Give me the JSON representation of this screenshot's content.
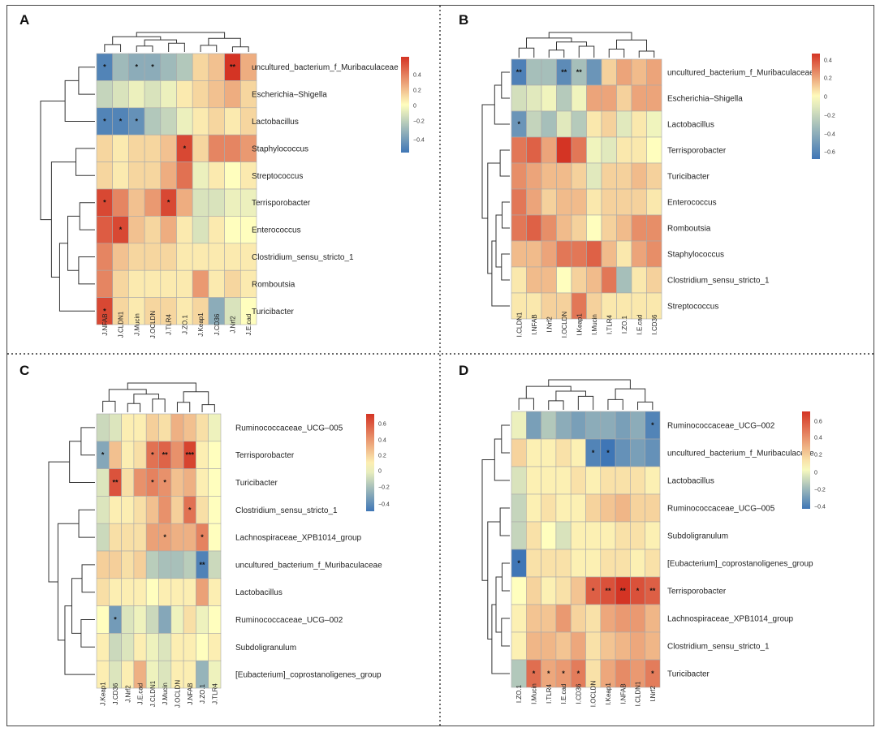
{
  "figure": {
    "border_color": "#444444",
    "divider_color": "#333333"
  },
  "colors": {
    "low": "#3f76b6",
    "mid": "#fffebe",
    "high": "#d43424",
    "grid": "#aaaaaa",
    "tree": "#333333"
  },
  "chart_data": [
    {
      "type": "heatmap",
      "panel": "A",
      "columns": [
        "J.NFAB",
        "J.CLDN1",
        "J.Mucin",
        "J.OCLDN",
        "J.TLR4",
        "J.ZO.1",
        "J.Keap1",
        "J.CD36",
        "J.Nrf2",
        "J.E.cad"
      ],
      "rows": [
        "uncultured_bacterium_f_Muribaculaceae",
        "Escherichia–Shigella",
        "Lactobacillus",
        "Staphylococcus",
        "Streptococcus",
        "Terrisporobacter",
        "Enterococcus",
        "Clostridium_sensu_stricto_1",
        "Romboutsia",
        "Turicibacter"
      ],
      "values": [
        [
          -0.45,
          -0.25,
          -0.3,
          -0.3,
          -0.25,
          -0.2,
          0.1,
          0.15,
          0.5,
          0.2
        ],
        [
          -0.15,
          -0.1,
          -0.05,
          -0.1,
          -0.05,
          0.05,
          0.1,
          0.15,
          0.2,
          0.1
        ],
        [
          -0.45,
          -0.45,
          -0.4,
          -0.2,
          -0.15,
          -0.05,
          0.05,
          0.1,
          0.05,
          0.1
        ],
        [
          0.1,
          0.05,
          0.1,
          0.1,
          0.15,
          0.45,
          0.1,
          0.3,
          0.3,
          0.25
        ],
        [
          0.1,
          0.05,
          0.1,
          0.1,
          0.2,
          0.35,
          -0.05,
          0.05,
          0.0,
          0.05
        ],
        [
          0.45,
          0.3,
          0.15,
          0.25,
          0.45,
          0.2,
          -0.1,
          -0.1,
          -0.05,
          -0.05
        ],
        [
          0.4,
          0.45,
          0.15,
          0.1,
          0.2,
          0.05,
          -0.1,
          0.05,
          0.0,
          0.0
        ],
        [
          0.3,
          0.15,
          0.1,
          0.1,
          0.1,
          0.05,
          0.05,
          0.05,
          0.05,
          0.05
        ],
        [
          0.3,
          0.1,
          0.05,
          0.05,
          0.05,
          0.05,
          0.25,
          0.05,
          0.1,
          0.05
        ],
        [
          0.45,
          0.1,
          0.05,
          0.1,
          0.1,
          0.05,
          0.1,
          -0.3,
          -0.1,
          0.0
        ]
      ],
      "stars": [
        [
          "*",
          "",
          "*",
          "*",
          "",
          "",
          "",
          "",
          "**",
          ""
        ],
        [
          "",
          "",
          "",
          "",
          "",
          "",
          "",
          "",
          "",
          ""
        ],
        [
          "*",
          "*",
          "*",
          "",
          "",
          "",
          "",
          "",
          "",
          ""
        ],
        [
          "",
          "",
          "",
          "",
          "",
          "*",
          "",
          "",
          "",
          ""
        ],
        [
          "",
          "",
          "",
          "",
          "",
          "",
          "",
          "",
          "",
          ""
        ],
        [
          "*",
          "",
          "",
          "",
          "*",
          "",
          "",
          "",
          "",
          ""
        ],
        [
          "",
          "*",
          "",
          "",
          "",
          "",
          "",
          "",
          "",
          ""
        ],
        [
          "",
          "",
          "",
          "",
          "",
          "",
          "",
          "",
          "",
          ""
        ],
        [
          "",
          "",
          "",
          "",
          "",
          "",
          "",
          "",
          "",
          ""
        ],
        [
          "*",
          "",
          "",
          "",
          "",
          "",
          "",
          "",
          "",
          ""
        ]
      ],
      "colorbar": {
        "ticks": [
          0.4,
          0.2,
          0,
          -0.2,
          -0.4
        ],
        "labels": [
          "0.4",
          "0.2",
          "0",
          "−0.2",
          "−0.4"
        ],
        "range": [
          -0.5,
          0.5
        ]
      }
    },
    {
      "type": "heatmap",
      "panel": "B",
      "columns": [
        "I.CLDN1",
        "I.NFAB",
        "I.Nrf2",
        "I.OCLDN",
        "I.Keap1",
        "I.Mucin",
        "I.TLR4",
        "I.ZO.1",
        "I.E.cad",
        "I.CD36"
      ],
      "rows": [
        "uncultured_bacterium_f_Muribaculaceae",
        "Escherichia–Shigella",
        "Lactobacillus",
        "Terrisporobacter",
        "Turicibacter",
        "Enterococcus",
        "Romboutsia",
        "Staphylococcus",
        "Clostridium_sensu_stricto_1",
        "Streptococcus"
      ],
      "values": [
        [
          -0.6,
          -0.3,
          -0.3,
          -0.55,
          -0.3,
          -0.5,
          0.1,
          0.2,
          0.15,
          0.2
        ],
        [
          -0.15,
          -0.1,
          -0.05,
          -0.25,
          -0.05,
          0.2,
          0.2,
          0.1,
          0.2,
          0.2
        ],
        [
          -0.5,
          -0.2,
          -0.3,
          -0.1,
          -0.25,
          0.05,
          0.1,
          -0.1,
          0.05,
          -0.05
        ],
        [
          0.3,
          0.35,
          0.2,
          0.45,
          0.3,
          -0.05,
          -0.1,
          0.05,
          0.05,
          0.0
        ],
        [
          0.25,
          0.2,
          0.15,
          0.15,
          0.1,
          -0.1,
          0.1,
          0.1,
          0.15,
          0.1
        ],
        [
          0.3,
          0.2,
          0.1,
          0.15,
          0.15,
          0.05,
          0.1,
          0.1,
          0.1,
          0.05
        ],
        [
          0.3,
          0.35,
          0.25,
          0.15,
          0.1,
          0.0,
          0.1,
          0.15,
          0.25,
          0.25
        ],
        [
          0.15,
          0.15,
          0.2,
          0.3,
          0.3,
          0.35,
          0.15,
          0.05,
          0.2,
          0.25
        ],
        [
          0.05,
          0.15,
          0.15,
          0.0,
          0.1,
          0.15,
          0.3,
          -0.3,
          0.05,
          0.1
        ],
        [
          0.05,
          0.05,
          0.1,
          0.1,
          0.3,
          0.1,
          0.05,
          0.05,
          0.05,
          0.05
        ]
      ],
      "stars": [
        [
          "**",
          "",
          "",
          "**",
          "**",
          "",
          "",
          "",
          "",
          ""
        ],
        [
          "",
          "",
          "",
          "",
          "",
          "",
          "",
          "",
          "",
          ""
        ],
        [
          "*",
          "",
          "",
          "",
          "",
          "",
          "",
          "",
          "",
          ""
        ],
        [
          "",
          "",
          "",
          "",
          "",
          "",
          "",
          "",
          "",
          ""
        ],
        [
          "",
          "",
          "",
          "",
          "",
          "",
          "",
          "",
          "",
          ""
        ],
        [
          "",
          "",
          "",
          "",
          "",
          "",
          "",
          "",
          "",
          ""
        ],
        [
          "",
          "",
          "",
          "",
          "",
          "",
          "",
          "",
          "",
          ""
        ],
        [
          "",
          "",
          "",
          "",
          "",
          "",
          "",
          "",
          "",
          ""
        ],
        [
          "",
          "",
          "",
          "",
          "",
          "",
          "",
          "",
          "",
          ""
        ],
        [
          "",
          "",
          "",
          "",
          "",
          "",
          "",
          "",
          "",
          ""
        ]
      ],
      "colorbar": {
        "ticks": [
          0.4,
          0.2,
          0,
          -0.2,
          -0.4,
          -0.6
        ],
        "labels": [
          "0.4",
          "0.2",
          "0",
          "−0.2",
          "−0.4",
          "−0.6"
        ],
        "range": [
          -0.65,
          0.45
        ]
      }
    },
    {
      "type": "heatmap",
      "panel": "C",
      "columns": [
        "J.Keap1",
        "J.CD36",
        "J.Nrf2",
        "J.E.cad",
        "J.CLDN1",
        "J.Mucin",
        "J.OCLDN",
        "J.NFAB",
        "J.ZO.1",
        "J.TLR4"
      ],
      "rows": [
        "Ruminococcaceae_UCG–005",
        "Terrisporobacter",
        "Turicibacter",
        "Clostridium_sensu_stricto_1",
        "Lachnospiraceae_XPB1014_group",
        "uncultured_bacterium_f_Muribaculaceae",
        "Lactobacillus",
        "Ruminococcaceae_UCG–002",
        "Subdoligranulum",
        "[Eubacterium]_coprostanoligenes_group"
      ],
      "values": [
        [
          -0.15,
          -0.1,
          0.05,
          0.05,
          0.15,
          0.1,
          0.25,
          0.2,
          0.1,
          -0.05
        ],
        [
          -0.35,
          0.2,
          0.05,
          0.1,
          0.45,
          0.5,
          0.35,
          0.6,
          0.05,
          0.0
        ],
        [
          -0.1,
          0.55,
          0.1,
          0.35,
          0.4,
          0.35,
          0.2,
          0.25,
          0.05,
          0.0
        ],
        [
          -0.1,
          0.05,
          0.05,
          0.1,
          0.2,
          0.35,
          0.15,
          0.45,
          0.1,
          0.0
        ],
        [
          -0.15,
          0.1,
          0.1,
          0.1,
          0.3,
          0.3,
          0.25,
          0.25,
          0.4,
          0.0
        ],
        [
          0.15,
          0.15,
          0.1,
          0.15,
          -0.2,
          -0.25,
          -0.25,
          -0.2,
          -0.5,
          -0.15
        ],
        [
          0.1,
          0.05,
          0.05,
          0.05,
          0.0,
          0.05,
          0.05,
          0.05,
          0.3,
          0.05
        ],
        [
          0.0,
          -0.4,
          -0.1,
          -0.05,
          -0.15,
          -0.35,
          -0.05,
          0.1,
          -0.05,
          0.0
        ],
        [
          0.05,
          -0.15,
          -0.1,
          0.05,
          -0.05,
          -0.1,
          0.05,
          0.05,
          0.0,
          0.05
        ],
        [
          0.05,
          -0.1,
          0.05,
          0.25,
          -0.05,
          -0.1,
          0.05,
          0.05,
          -0.3,
          -0.05
        ]
      ],
      "stars": [
        [
          "",
          "",
          "",
          "",
          "",
          "",
          "",
          "",
          "",
          ""
        ],
        [
          "*",
          "",
          "",
          "",
          "*",
          "**",
          "",
          "***",
          "",
          ""
        ],
        [
          "",
          "**",
          "",
          "",
          "*",
          "*",
          "",
          "",
          "",
          ""
        ],
        [
          "",
          "",
          "",
          "",
          "",
          "",
          "",
          "*",
          "",
          ""
        ],
        [
          "",
          "",
          "",
          "",
          "",
          "*",
          "",
          "",
          "*",
          ""
        ],
        [
          "",
          "",
          "",
          "",
          "",
          "",
          "",
          "",
          "**",
          ""
        ],
        [
          "",
          "",
          "",
          "",
          "",
          "",
          "",
          "",
          "",
          ""
        ],
        [
          "",
          "*",
          "",
          "",
          "",
          "",
          "",
          "",
          "",
          ""
        ],
        [
          "",
          "",
          "",
          "",
          "",
          "",
          "",
          "",
          "",
          ""
        ],
        [
          "",
          "",
          "",
          "",
          "",
          "",
          "",
          "",
          "",
          ""
        ]
      ],
      "colorbar": {
        "ticks": [
          0.6,
          0.4,
          0.2,
          0,
          -0.2,
          -0.4
        ],
        "labels": [
          "0.6",
          "0.4",
          "0.2",
          "0",
          "−0.2",
          "−0.4"
        ],
        "range": [
          -0.55,
          0.65
        ]
      }
    },
    {
      "type": "heatmap",
      "panel": "D",
      "columns": [
        "I.ZO.1",
        "I.Mucin",
        "I.TLR4",
        "I.E.cad",
        "I.CD36",
        "I.OCLDN",
        "I.Keap1",
        "I.NFAB",
        "I.CLDN1",
        "I.Nrf2"
      ],
      "rows": [
        "Ruminococcaceae_UCG–002",
        "uncultured_bacterium_f_Muribaculaceae",
        "Lactobacillus",
        "Ruminococcaceae_UCG–005",
        "Subdoligranulum",
        "[Eubacterium]_coprostanoligenes_group",
        "Terrisporobacter",
        "Lachnospiraceae_XPB1014_group",
        "Clostridium_sensu_stricto_1",
        "Turicibacter"
      ],
      "values": [
        [
          -0.05,
          -0.35,
          -0.2,
          -0.3,
          -0.35,
          -0.3,
          -0.3,
          -0.35,
          -0.3,
          -0.45
        ],
        [
          0.15,
          0.05,
          0.05,
          0.1,
          0.05,
          -0.45,
          -0.5,
          -0.4,
          -0.35,
          -0.4
        ],
        [
          -0.1,
          0.05,
          0.05,
          0.05,
          0.1,
          0.05,
          0.1,
          0.1,
          0.1,
          0.05
        ],
        [
          -0.15,
          0.05,
          0.1,
          0.05,
          0.05,
          0.15,
          0.2,
          0.25,
          0.15,
          0.15
        ],
        [
          -0.15,
          0.1,
          0.0,
          -0.1,
          0.05,
          0.05,
          0.05,
          0.1,
          0.1,
          0.05
        ],
        [
          -0.5,
          0.1,
          0.1,
          0.1,
          0.05,
          0.05,
          0.1,
          0.1,
          0.05,
          0.1
        ],
        [
          0.0,
          0.15,
          0.05,
          0.1,
          0.2,
          0.55,
          0.6,
          0.7,
          0.6,
          0.55
        ],
        [
          0.05,
          0.2,
          0.2,
          0.35,
          0.15,
          0.1,
          0.3,
          0.35,
          0.35,
          0.25
        ],
        [
          0.05,
          0.25,
          0.25,
          0.2,
          0.3,
          0.1,
          0.2,
          0.25,
          0.3,
          0.25
        ],
        [
          -0.2,
          0.5,
          0.3,
          0.35,
          0.45,
          0.1,
          0.3,
          0.4,
          0.35,
          0.45
        ]
      ],
      "stars": [
        [
          "",
          "",
          "",
          "",
          "",
          "",
          "",
          "",
          "",
          "*"
        ],
        [
          "",
          "",
          "",
          "",
          "",
          "*",
          "*",
          "",
          "",
          ""
        ],
        [
          "",
          "",
          "",
          "",
          "",
          "",
          "",
          "",
          "",
          ""
        ],
        [
          "",
          "",
          "",
          "",
          "",
          "",
          "",
          "",
          "",
          ""
        ],
        [
          "",
          "",
          "",
          "",
          "",
          "",
          "",
          "",
          "",
          ""
        ],
        [
          "*",
          "",
          "",
          "",
          "",
          "",
          "",
          "",
          "",
          ""
        ],
        [
          "",
          "",
          "",
          "",
          "",
          "*",
          "**",
          "**",
          "*",
          "**"
        ],
        [
          "",
          "",
          "",
          "",
          "",
          "",
          "",
          "",
          "",
          ""
        ],
        [
          "",
          "",
          "",
          "",
          "",
          "",
          "",
          "",
          "",
          ""
        ],
        [
          "",
          "*",
          "*",
          "*",
          "*",
          "",
          "",
          "",
          "",
          "*"
        ]
      ],
      "colorbar": {
        "ticks": [
          0.6,
          0.4,
          0.2,
          0,
          -0.2,
          -0.4
        ],
        "labels": [
          "0.6",
          "0.4",
          "0.2",
          "0",
          "−0.2",
          "−0.4"
        ],
        "range": [
          -0.5,
          0.7
        ]
      }
    }
  ]
}
